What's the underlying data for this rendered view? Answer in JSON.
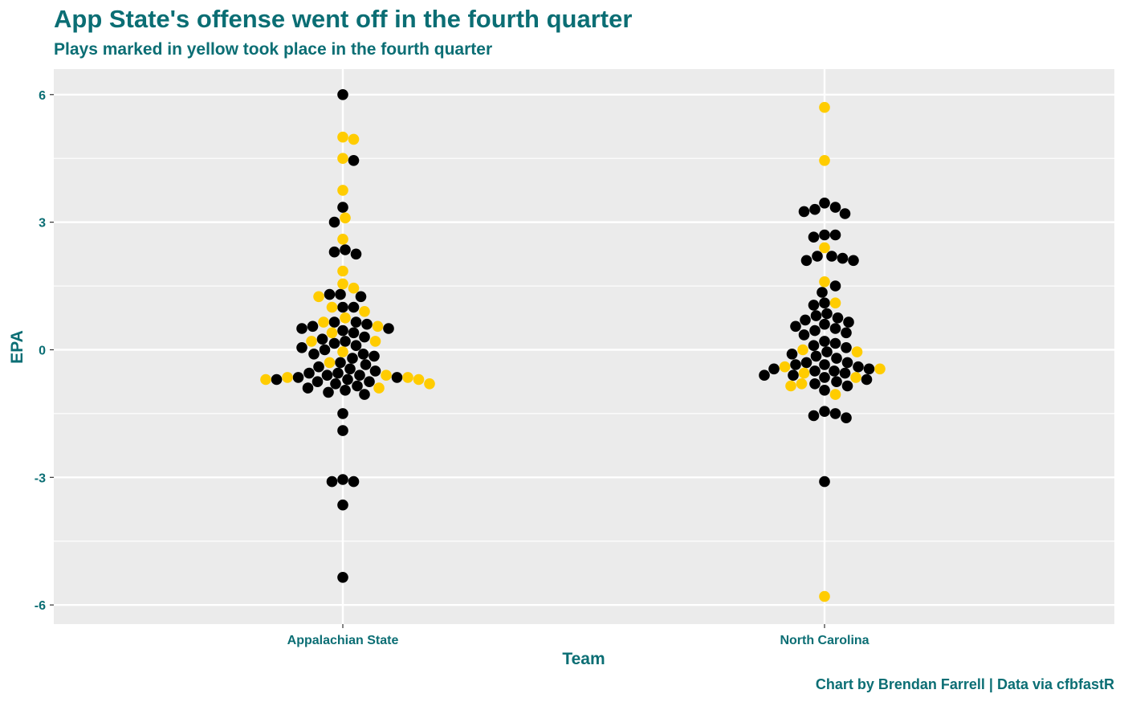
{
  "title": "App State's offense went off in the fourth quarter",
  "subtitle": "Plays marked in yellow took place in the fourth quarter",
  "caption": "Chart by Brendan Farrell | Data via cfbfastR",
  "colors": {
    "text": "#0b6e74",
    "panel": "#ebebeb",
    "grid": "#ffffff",
    "other_quarters": "#000000",
    "fourth_quarter": "#ffcc00"
  },
  "chart_data": {
    "type": "scatter",
    "style": "beeswarm",
    "xlabel": "Team",
    "ylabel": "EPA",
    "categories": [
      "Appalachian State",
      "North Carolina"
    ],
    "ylim": [
      -6.45,
      6.6
    ],
    "yticks": [
      -6,
      -3,
      0,
      3,
      6
    ],
    "ytick_labels": [
      "-6",
      "-3",
      "0",
      "3",
      "6"
    ],
    "grid": true,
    "legend": "none",
    "series": [
      {
        "category": "Appalachian State",
        "other_quarters": [
          6.0,
          4.45,
          3.35,
          3.0,
          2.35,
          2.3,
          2.25,
          1.3,
          1.3,
          1.25,
          1.0,
          1.0,
          0.65,
          0.65,
          0.6,
          0.55,
          0.5,
          0.5,
          0.45,
          0.4,
          0.3,
          0.25,
          0.2,
          0.15,
          0.1,
          0.05,
          0.0,
          -0.1,
          -0.1,
          -0.15,
          -0.2,
          -0.3,
          -0.35,
          -0.4,
          -0.45,
          -0.5,
          -0.55,
          -0.55,
          -0.6,
          -0.6,
          -0.65,
          -0.65,
          -0.7,
          -0.7,
          -0.75,
          -0.75,
          -0.8,
          -0.85,
          -0.9,
          -0.95,
          -1.0,
          -1.05,
          -1.5,
          -1.9,
          -3.05,
          -3.1,
          -3.1,
          -3.65,
          -5.35
        ],
        "fourth_quarter": [
          5.0,
          4.95,
          4.5,
          3.75,
          3.1,
          2.6,
          1.85,
          1.55,
          1.45,
          1.25,
          1.0,
          0.9,
          0.75,
          0.65,
          0.55,
          0.4,
          0.2,
          0.2,
          -0.05,
          -0.3,
          -0.6,
          -0.65,
          -0.65,
          -0.7,
          -0.7,
          -0.8,
          -0.9
        ]
      },
      {
        "category": "North Carolina",
        "other_quarters": [
          3.45,
          3.35,
          3.3,
          3.25,
          3.2,
          2.7,
          2.7,
          2.65,
          2.2,
          2.2,
          2.15,
          2.1,
          2.1,
          1.5,
          1.35,
          1.1,
          1.05,
          0.85,
          0.8,
          0.75,
          0.7,
          0.65,
          0.6,
          0.55,
          0.5,
          0.45,
          0.4,
          0.35,
          0.2,
          0.15,
          0.1,
          0.05,
          -0.05,
          -0.1,
          -0.15,
          -0.2,
          -0.3,
          -0.3,
          -0.35,
          -0.35,
          -0.4,
          -0.45,
          -0.45,
          -0.5,
          -0.5,
          -0.55,
          -0.6,
          -0.6,
          -0.65,
          -0.7,
          -0.75,
          -0.8,
          -0.85,
          -0.95,
          -1.45,
          -1.5,
          -1.55,
          -1.6,
          -3.1
        ],
        "fourth_quarter": [
          5.7,
          4.45,
          2.4,
          1.6,
          1.1,
          0.0,
          -0.05,
          -0.4,
          -0.45,
          -0.55,
          -0.65,
          -0.8,
          -0.85,
          -1.05,
          -5.8
        ]
      }
    ]
  }
}
